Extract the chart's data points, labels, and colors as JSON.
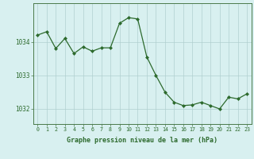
{
  "x": [
    0,
    1,
    2,
    3,
    4,
    5,
    6,
    7,
    8,
    9,
    10,
    11,
    12,
    13,
    14,
    15,
    16,
    17,
    18,
    19,
    20,
    21,
    22,
    23
  ],
  "y": [
    1034.2,
    1034.3,
    1033.8,
    1034.1,
    1033.65,
    1033.85,
    1033.72,
    1033.82,
    1033.82,
    1034.55,
    1034.72,
    1034.68,
    1033.55,
    1033.0,
    1032.5,
    1032.2,
    1032.1,
    1032.12,
    1032.2,
    1032.1,
    1032.0,
    1032.35,
    1032.3,
    1032.45
  ],
  "line_color": "#2d6a2d",
  "marker_color": "#2d6a2d",
  "bg_color": "#d8f0f0",
  "grid_color": "#b0d0d0",
  "xlabel": "Graphe pression niveau de la mer (hPa)",
  "xlabel_color": "#2d6a2d",
  "tick_color": "#2d6a2d",
  "ylabel_ticks": [
    1032,
    1033,
    1034
  ],
  "ylim": [
    1031.55,
    1035.15
  ],
  "xlim": [
    -0.5,
    23.5
  ],
  "xtick_labels": [
    "0",
    "1",
    "2",
    "3",
    "4",
    "5",
    "6",
    "7",
    "8",
    "9",
    "10",
    "11",
    "12",
    "13",
    "14",
    "15",
    "16",
    "17",
    "18",
    "19",
    "20",
    "21",
    "22",
    "23"
  ]
}
